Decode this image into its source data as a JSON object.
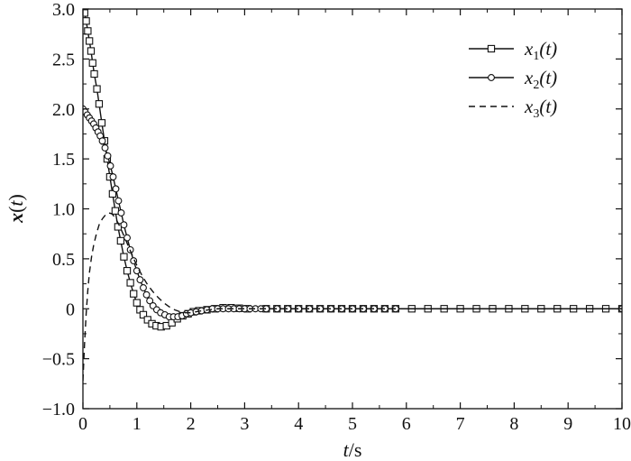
{
  "chart_data": {
    "type": "line",
    "title": "",
    "xlabel": "t/s",
    "ylabel": "x(t)",
    "xlim": [
      0,
      10
    ],
    "ylim": [
      -1.0,
      3.0
    ],
    "x_ticks": [
      0,
      1,
      2,
      3,
      4,
      5,
      6,
      7,
      8,
      9,
      10
    ],
    "y_ticks": [
      -1.0,
      -0.5,
      0,
      0.5,
      1.0,
      1.5,
      2.0,
      2.5,
      3.0
    ],
    "x_tick_labels": [
      "0",
      "1",
      "2",
      "3",
      "4",
      "5",
      "6",
      "7",
      "8",
      "9",
      "10"
    ],
    "y_tick_labels": [
      "−1.0",
      "−0.5",
      "0",
      "0.5",
      "1.0",
      "1.5",
      "2.0",
      "2.5",
      "3.0"
    ],
    "grid": false,
    "legend_position": "top-right",
    "series": [
      {
        "name": "x1(t)",
        "label_base": "x",
        "label_sub": "1",
        "label_arg": "(t)",
        "line": "solid",
        "marker": "square",
        "points": [
          [
            0,
            3.0
          ],
          [
            0.03,
            2.96
          ],
          [
            0.06,
            2.88
          ],
          [
            0.09,
            2.78
          ],
          [
            0.12,
            2.68
          ],
          [
            0.15,
            2.58
          ],
          [
            0.18,
            2.46
          ],
          [
            0.21,
            2.35
          ],
          [
            0.26,
            2.2
          ],
          [
            0.3,
            2.05
          ],
          [
            0.35,
            1.86
          ],
          [
            0.4,
            1.68
          ],
          [
            0.45,
            1.5
          ],
          [
            0.5,
            1.32
          ],
          [
            0.55,
            1.15
          ],
          [
            0.6,
            0.98
          ],
          [
            0.65,
            0.82
          ],
          [
            0.7,
            0.68
          ],
          [
            0.76,
            0.52
          ],
          [
            0.82,
            0.38
          ],
          [
            0.88,
            0.26
          ],
          [
            0.94,
            0.15
          ],
          [
            1.0,
            0.06
          ],
          [
            1.06,
            -0.01
          ],
          [
            1.12,
            -0.06
          ],
          [
            1.2,
            -0.11
          ],
          [
            1.28,
            -0.15
          ],
          [
            1.36,
            -0.17
          ],
          [
            1.45,
            -0.18
          ],
          [
            1.55,
            -0.17
          ],
          [
            1.65,
            -0.14
          ],
          [
            1.75,
            -0.1
          ],
          [
            1.85,
            -0.07
          ],
          [
            1.95,
            -0.05
          ],
          [
            2.05,
            -0.03
          ],
          [
            2.15,
            -0.02
          ],
          [
            2.3,
            -0.01
          ],
          [
            2.45,
            0.0
          ],
          [
            2.6,
            0.01
          ],
          [
            2.75,
            0.01
          ],
          [
            2.9,
            0.005
          ],
          [
            3.05,
            0.0
          ],
          [
            3.4,
            0.0
          ],
          [
            3.6,
            0.0
          ],
          [
            3.8,
            0.0
          ],
          [
            4.0,
            0.0
          ],
          [
            4.2,
            0.0
          ],
          [
            4.4,
            0.0
          ],
          [
            4.6,
            0.0
          ],
          [
            4.8,
            0.0
          ],
          [
            5.0,
            0.0
          ],
          [
            5.2,
            0.0
          ],
          [
            5.4,
            0.0
          ],
          [
            5.6,
            0.0
          ],
          [
            5.8,
            0.0
          ],
          [
            6.1,
            0.0
          ],
          [
            6.4,
            0.0
          ],
          [
            6.7,
            0.0
          ],
          [
            7.0,
            0.0
          ],
          [
            7.3,
            0.0
          ],
          [
            7.6,
            0.0
          ],
          [
            7.9,
            0.0
          ],
          [
            8.2,
            0.0
          ],
          [
            8.5,
            0.0
          ],
          [
            8.8,
            0.0
          ],
          [
            9.1,
            0.0
          ],
          [
            9.4,
            0.0
          ],
          [
            9.7,
            0.0
          ],
          [
            10.0,
            0.0
          ]
        ]
      },
      {
        "name": "x2(t)",
        "label_base": "x",
        "label_sub": "2",
        "label_arg": "(t)",
        "line": "solid",
        "marker": "circle",
        "points": [
          [
            0,
            2.0
          ],
          [
            0.04,
            1.97
          ],
          [
            0.08,
            1.94
          ],
          [
            0.12,
            1.91
          ],
          [
            0.16,
            1.88
          ],
          [
            0.2,
            1.85
          ],
          [
            0.24,
            1.81
          ],
          [
            0.28,
            1.77
          ],
          [
            0.32,
            1.73
          ],
          [
            0.36,
            1.68
          ],
          [
            0.41,
            1.61
          ],
          [
            0.46,
            1.53
          ],
          [
            0.51,
            1.43
          ],
          [
            0.56,
            1.32
          ],
          [
            0.61,
            1.2
          ],
          [
            0.66,
            1.08
          ],
          [
            0.71,
            0.96
          ],
          [
            0.76,
            0.84
          ],
          [
            0.82,
            0.71
          ],
          [
            0.88,
            0.59
          ],
          [
            0.94,
            0.48
          ],
          [
            1.0,
            0.38
          ],
          [
            1.06,
            0.29
          ],
          [
            1.12,
            0.21
          ],
          [
            1.18,
            0.14
          ],
          [
            1.24,
            0.08
          ],
          [
            1.3,
            0.03
          ],
          [
            1.37,
            -0.01
          ],
          [
            1.44,
            -0.04
          ],
          [
            1.52,
            -0.06
          ],
          [
            1.6,
            -0.08
          ],
          [
            1.68,
            -0.08
          ],
          [
            1.76,
            -0.08
          ],
          [
            1.84,
            -0.07
          ],
          [
            1.92,
            -0.05
          ],
          [
            2.0,
            -0.04
          ],
          [
            2.1,
            -0.03
          ],
          [
            2.2,
            -0.02
          ],
          [
            2.3,
            -0.01
          ],
          [
            2.4,
            0.0
          ],
          [
            2.5,
            0.0
          ],
          [
            2.6,
            0.0
          ],
          [
            2.7,
            0.0
          ],
          [
            2.8,
            0.0
          ],
          [
            2.9,
            0.0
          ],
          [
            3.0,
            0.0
          ],
          [
            3.1,
            0.0
          ],
          [
            3.2,
            0.0
          ],
          [
            3.3,
            0.0
          ],
          [
            3.4,
            0.0
          ],
          [
            3.6,
            0.0
          ],
          [
            3.8,
            0.0
          ],
          [
            4.0,
            0.0
          ],
          [
            4.2,
            0.0
          ],
          [
            4.4,
            0.0
          ],
          [
            4.6,
            0.0
          ],
          [
            4.8,
            0.0
          ],
          [
            5.0,
            0.0
          ],
          [
            5.2,
            0.0
          ],
          [
            5.4,
            0.0
          ],
          [
            5.6,
            0.0
          ],
          [
            5.8,
            0.0
          ],
          [
            10.0,
            0.0
          ]
        ]
      },
      {
        "name": "x3(t)",
        "label_base": "x",
        "label_sub": "3",
        "label_arg": "(t)",
        "line": "dashed",
        "marker": "none",
        "points": [
          [
            0,
            -0.72
          ],
          [
            0.03,
            -0.35
          ],
          [
            0.06,
            -0.05
          ],
          [
            0.09,
            0.18
          ],
          [
            0.12,
            0.36
          ],
          [
            0.16,
            0.52
          ],
          [
            0.2,
            0.64
          ],
          [
            0.25,
            0.75
          ],
          [
            0.3,
            0.84
          ],
          [
            0.36,
            0.9
          ],
          [
            0.42,
            0.94
          ],
          [
            0.48,
            0.96
          ],
          [
            0.54,
            0.95
          ],
          [
            0.6,
            0.91
          ],
          [
            0.66,
            0.85
          ],
          [
            0.72,
            0.78
          ],
          [
            0.8,
            0.68
          ],
          [
            0.88,
            0.58
          ],
          [
            0.96,
            0.48
          ],
          [
            1.04,
            0.39
          ],
          [
            1.12,
            0.31
          ],
          [
            1.2,
            0.24
          ],
          [
            1.3,
            0.17
          ],
          [
            1.4,
            0.11
          ],
          [
            1.5,
            0.06
          ],
          [
            1.6,
            0.02
          ],
          [
            1.7,
            -0.01
          ],
          [
            1.8,
            -0.03
          ],
          [
            1.9,
            -0.04
          ],
          [
            2.0,
            -0.04
          ],
          [
            2.1,
            -0.03
          ],
          [
            2.2,
            -0.02
          ],
          [
            2.35,
            -0.01
          ],
          [
            2.5,
            0.0
          ],
          [
            2.8,
            0.0
          ],
          [
            3.5,
            0.0
          ],
          [
            5.0,
            0.0
          ],
          [
            10.0,
            0.0
          ]
        ]
      }
    ]
  }
}
